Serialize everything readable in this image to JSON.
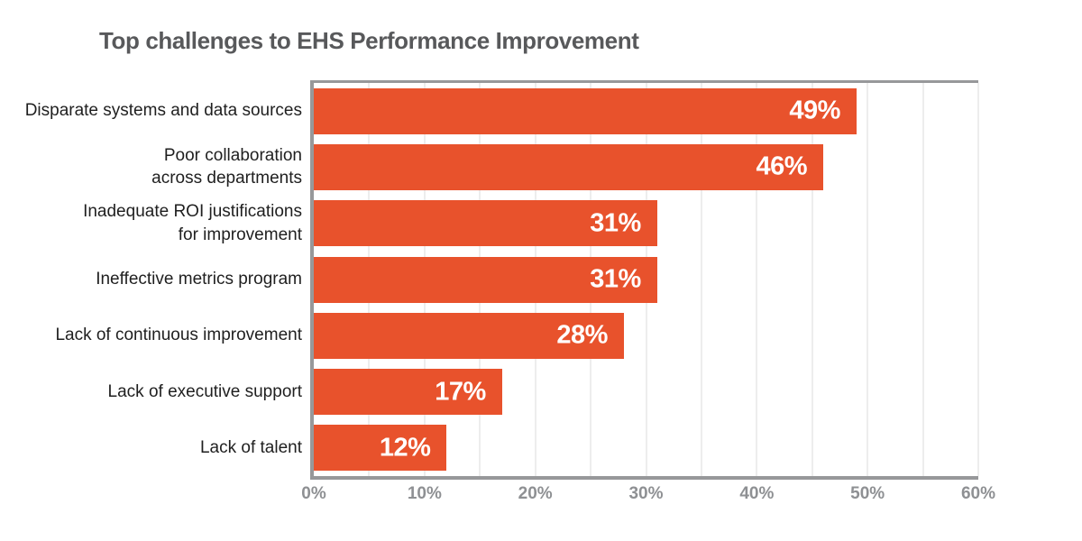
{
  "title": "Top challenges to EHS Performance Improvement",
  "chart_data": {
    "type": "bar",
    "orientation": "horizontal",
    "title": "Top challenges to EHS Performance Improvement",
    "categories": [
      "Disparate systems and data sources",
      "Poor collaboration\nacross departments",
      "Inadequate ROI justifications\nfor improvement",
      "Ineffective metrics program",
      "Lack of continuous improvement",
      "Lack of executive support",
      "Lack of talent"
    ],
    "values": [
      49,
      46,
      31,
      31,
      28,
      17,
      12
    ],
    "value_labels": [
      "49%",
      "46%",
      "31%",
      "31%",
      "28%",
      "17%",
      "12%"
    ],
    "xlabel": "",
    "ylabel": "",
    "xlim": [
      0,
      60
    ],
    "grid_step": 5,
    "xticks": [
      0,
      10,
      20,
      30,
      40,
      50,
      60
    ],
    "xtick_labels": [
      "0%",
      "10%",
      "20%",
      "30%",
      "40%",
      "50%",
      "60%"
    ],
    "grid": "vertical minor gridlines every 5%, light gray",
    "legend": "none"
  },
  "colors": {
    "bar": "#E8522C",
    "axis_line": "#97989A",
    "gridline": "#EDEDED",
    "title_text": "#58595B",
    "tick_text": "#8E9093",
    "category_text": "#1F1F1F",
    "value_text": "#FFFFFF",
    "background": "#FFFFFF"
  }
}
